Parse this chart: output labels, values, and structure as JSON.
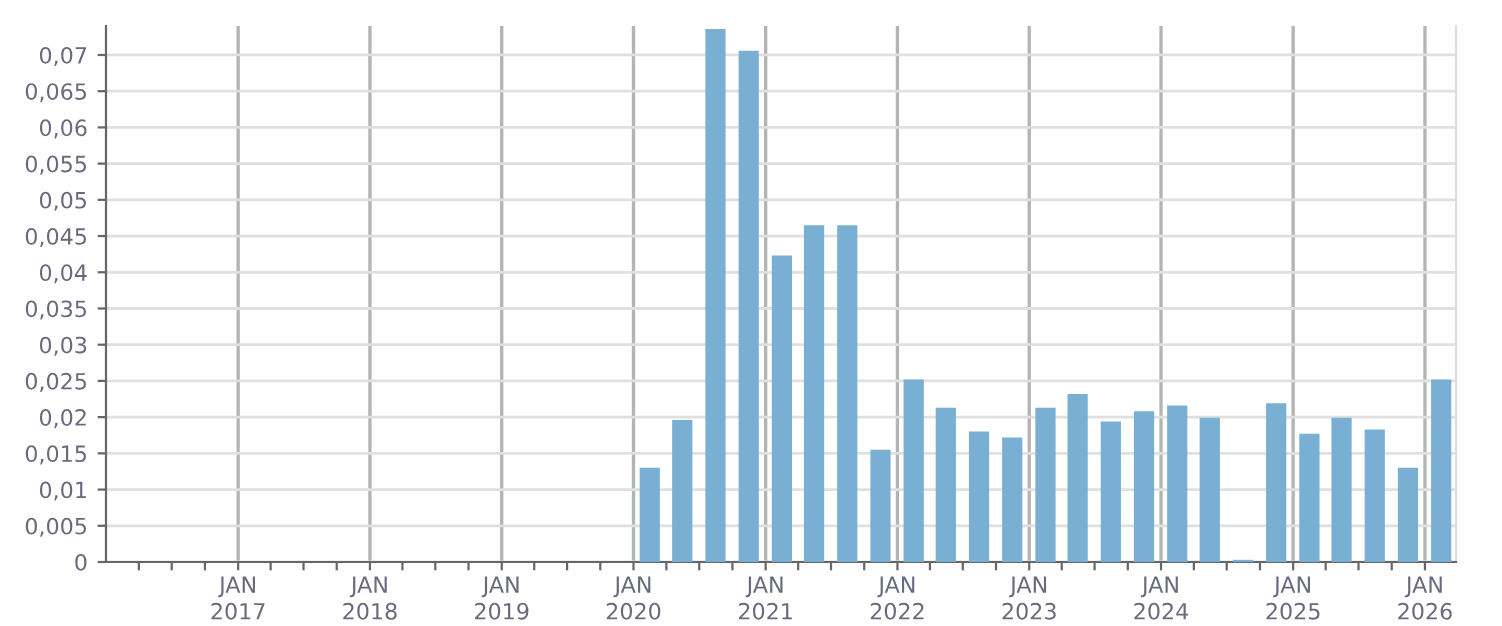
{
  "chart_data": {
    "type": "bar",
    "color": "#78afd2",
    "x": [
      "2020-02-15",
      "2020-05-15",
      "2020-08-15",
      "2020-11-15",
      "2021-02-15",
      "2021-05-15",
      "2021-08-15",
      "2021-11-15",
      "2022-02-15",
      "2022-05-15",
      "2022-08-15",
      "2022-11-15",
      "2023-02-15",
      "2023-05-15",
      "2023-08-15",
      "2023-11-15",
      "2024-02-15",
      "2024-05-15",
      "2024-08-15",
      "2024-11-15",
      "2025-02-15",
      "2025-05-15",
      "2025-08-15",
      "2025-11-15",
      "2026-02-15"
    ],
    "values": [
      0.013,
      0.0196,
      0.0736,
      0.0706,
      0.0423,
      0.0465,
      0.0465,
      0.0155,
      0.0252,
      0.0213,
      0.018,
      0.0172,
      0.0213,
      0.0232,
      0.0194,
      0.0208,
      0.0216,
      0.0199,
      0.0003,
      0.0219,
      0.0177,
      0.0199,
      0.0183,
      0.013,
      0.0252
    ],
    "xlim": [
      "2016-01-01",
      "2026-03-28"
    ],
    "xticks": [
      {
        "value": "2016-04-01",
        "label": null
      },
      {
        "value": "2016-07-01",
        "label": null
      },
      {
        "value": "2016-10-01",
        "label": null
      },
      {
        "value": "2017-01-01",
        "label": "JAN\n2017"
      },
      {
        "value": "2017-04-01",
        "label": null
      },
      {
        "value": "2017-07-01",
        "label": null
      },
      {
        "value": "2017-10-01",
        "label": null
      },
      {
        "value": "2018-01-01",
        "label": "JAN\n2018"
      },
      {
        "value": "2018-04-01",
        "label": null
      },
      {
        "value": "2018-07-01",
        "label": null
      },
      {
        "value": "2018-10-01",
        "label": null
      },
      {
        "value": "2019-01-01",
        "label": "JAN\n2019"
      },
      {
        "value": "2019-04-01",
        "label": null
      },
      {
        "value": "2019-07-01",
        "label": null
      },
      {
        "value": "2019-10-01",
        "label": null
      },
      {
        "value": "2020-01-01",
        "label": "JAN\n2020"
      },
      {
        "value": "2020-04-01",
        "label": null
      },
      {
        "value": "2020-07-01",
        "label": null
      },
      {
        "value": "2020-10-01",
        "label": null
      },
      {
        "value": "2021-01-01",
        "label": "JAN\n2021"
      },
      {
        "value": "2021-04-01",
        "label": null
      },
      {
        "value": "2021-07-01",
        "label": null
      },
      {
        "value": "2021-10-01",
        "label": null
      },
      {
        "value": "2022-01-01",
        "label": "JAN\n2022"
      },
      {
        "value": "2022-04-01",
        "label": null
      },
      {
        "value": "2022-07-01",
        "label": null
      },
      {
        "value": "2022-10-01",
        "label": null
      },
      {
        "value": "2023-01-01",
        "label": "JAN\n2023"
      },
      {
        "value": "2023-04-01",
        "label": null
      },
      {
        "value": "2023-07-01",
        "label": null
      },
      {
        "value": "2023-10-01",
        "label": null
      },
      {
        "value": "2024-01-01",
        "label": "JAN\n2024"
      },
      {
        "value": "2024-04-01",
        "label": null
      },
      {
        "value": "2024-07-01",
        "label": null
      },
      {
        "value": "2024-10-01",
        "label": null
      },
      {
        "value": "2025-01-01",
        "label": "JAN\n2025"
      },
      {
        "value": "2025-04-01",
        "label": null
      },
      {
        "value": "2025-07-01",
        "label": null
      },
      {
        "value": "2025-10-01",
        "label": null
      },
      {
        "value": "2026-01-01",
        "label": "JAN\n2026"
      }
    ],
    "ylim": [
      0,
      0.074
    ],
    "yticks": [
      0,
      {
        "value": 0.005,
        "label": "0,005"
      },
      {
        "value": 0.01,
        "label": "0,01"
      },
      {
        "value": 0.015,
        "label": "0,015"
      },
      {
        "value": 0.02,
        "label": "0,02"
      },
      {
        "value": 0.025,
        "label": "0,025"
      },
      {
        "value": 0.03,
        "label": "0,03"
      },
      {
        "value": 0.035,
        "label": "0,035"
      },
      {
        "value": 0.04,
        "label": "0,04"
      },
      {
        "value": 0.045,
        "label": "0,045"
      },
      {
        "value": 0.05,
        "label": "0,05"
      },
      {
        "value": 0.055,
        "label": "0,055"
      },
      {
        "value": 0.06,
        "label": "0,06"
      },
      {
        "value": 0.065,
        "label": "0,065"
      },
      {
        "value": 0.07,
        "label": "0,07"
      }
    ],
    "grid": true
  }
}
